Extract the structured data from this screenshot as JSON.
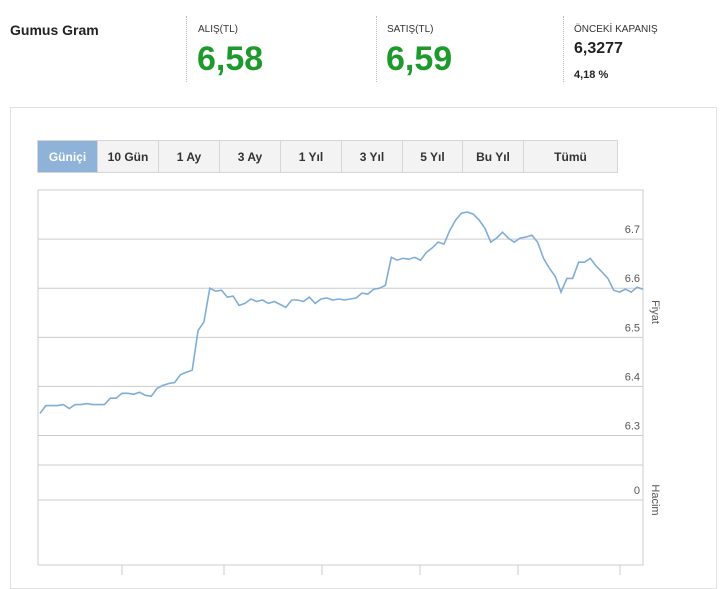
{
  "header": {
    "title": "Gumus Gram",
    "buy_label": "ALIŞ(TL)",
    "buy_value": "6,58",
    "sell_label": "SATIŞ(TL)",
    "sell_value": "6,59",
    "prev_close_label": "ÖNCEKİ KAPANIŞ",
    "prev_close_value": "6,3277",
    "change": "4,18 %"
  },
  "tabs": [
    "Güniçi",
    "10 Gün",
    "1 Ay",
    "3 Ay",
    "1 Yıl",
    "3 Yıl",
    "5 Yıl",
    "Bu Yıl",
    "Tümü"
  ],
  "chart_data": {
    "type": "line",
    "color": "#7eaed8",
    "y_label": "Fiyat",
    "volume_label": "Hacim",
    "ylim": [
      6.24,
      6.8
    ],
    "yticks": [
      6.3,
      6.4,
      6.5,
      6.6,
      6.7
    ],
    "volume_ticks": [
      0
    ],
    "grid": true,
    "values": [
      6.345,
      6.361,
      6.361,
      6.361,
      6.363,
      6.355,
      6.363,
      6.363,
      6.365,
      6.363,
      6.363,
      6.363,
      6.376,
      6.376,
      6.386,
      6.386,
      6.384,
      6.388,
      6.382,
      6.38,
      6.396,
      6.402,
      6.406,
      6.408,
      6.424,
      6.429,
      6.433,
      6.514,
      6.531,
      6.6,
      6.594,
      6.596,
      6.582,
      6.584,
      6.565,
      6.569,
      6.578,
      6.573,
      6.576,
      6.569,
      6.573,
      6.567,
      6.561,
      6.576,
      6.576,
      6.573,
      6.582,
      6.569,
      6.578,
      6.58,
      6.576,
      6.578,
      6.576,
      6.578,
      6.58,
      6.59,
      6.588,
      6.598,
      6.6,
      6.606,
      6.663,
      6.657,
      6.661,
      6.659,
      6.663,
      6.657,
      6.673,
      6.682,
      6.694,
      6.69,
      6.718,
      6.739,
      6.753,
      6.755,
      6.751,
      6.739,
      6.722,
      6.694,
      6.702,
      6.714,
      6.702,
      6.694,
      6.702,
      6.704,
      6.708,
      6.694,
      6.661,
      6.641,
      6.624,
      6.592,
      6.62,
      6.62,
      6.653,
      6.653,
      6.661,
      6.645,
      6.633,
      6.62,
      6.596,
      6.592,
      6.598,
      6.592,
      6.602,
      6.598
    ]
  }
}
